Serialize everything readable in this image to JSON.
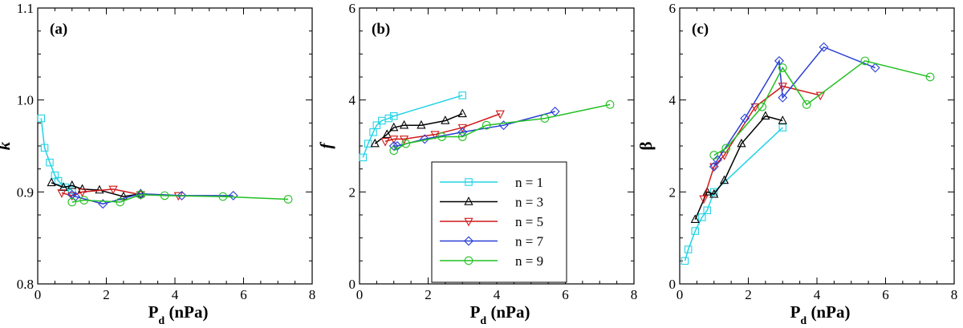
{
  "chart_data": [
    {
      "type": "line",
      "panel_label": "(a)",
      "xlabel_main": "P",
      "xlabel_sub": "d",
      "xlabel_unit": " (nPa)",
      "ylabel": "k",
      "ylabel_style": "bold-italic",
      "xlim": [
        0,
        8
      ],
      "ylim": [
        0.8,
        1.1
      ],
      "xticks": [
        0,
        2,
        4,
        6,
        8
      ],
      "yticks": [
        0.8,
        0.9,
        1.0,
        1.1
      ],
      "ytick_labels": [
        "0.8",
        "0.9",
        "1.0",
        "1.1"
      ],
      "series": [
        {
          "name": "n = 1",
          "marker": "square",
          "color": "#22d3e6",
          "x": [
            0.1,
            0.2,
            0.35,
            0.5,
            0.6,
            0.8,
            1.0
          ],
          "y": [
            0.98,
            0.948,
            0.932,
            0.918,
            0.912,
            0.905,
            0.902
          ]
        },
        {
          "name": "n = 3",
          "marker": "triangle-up",
          "color": "#000000",
          "x": [
            0.4,
            0.75,
            1.0,
            1.3,
            1.8,
            2.5,
            3.0
          ],
          "y": [
            0.91,
            0.905,
            0.907,
            0.903,
            0.902,
            0.895,
            0.898
          ]
        },
        {
          "name": "n = 5",
          "marker": "triangle-down",
          "color": "#d01818",
          "x": [
            0.7,
            1.0,
            1.3,
            2.2,
            3.0,
            4.1
          ],
          "y": [
            0.899,
            0.896,
            0.9,
            0.903,
            0.897,
            0.896
          ]
        },
        {
          "name": "n = 7",
          "marker": "diamond",
          "color": "#2a3fd6",
          "x": [
            1.0,
            1.1,
            1.9,
            3.0,
            4.2,
            5.7
          ],
          "y": [
            0.897,
            0.895,
            0.887,
            0.898,
            0.896,
            0.896
          ]
        },
        {
          "name": "n = 9",
          "marker": "circle",
          "color": "#22c022",
          "x": [
            1.0,
            1.35,
            2.4,
            3.0,
            3.7,
            5.4,
            7.3
          ],
          "y": [
            0.889,
            0.891,
            0.889,
            0.897,
            0.896,
            0.895,
            0.892
          ]
        }
      ]
    },
    {
      "type": "line",
      "panel_label": "(b)",
      "xlabel_main": "P",
      "xlabel_sub": "d",
      "xlabel_unit": " (nPa)",
      "ylabel": "f",
      "ylabel_style": "bold-italic",
      "xlim": [
        0,
        8
      ],
      "ylim": [
        0,
        6
      ],
      "xticks": [
        0,
        2,
        4,
        6,
        8
      ],
      "yticks": [
        0,
        2,
        4,
        6
      ],
      "ytick_labels": [
        "0",
        "2",
        "4",
        "6"
      ],
      "legend": [
        "n = 1",
        "n = 3",
        "n = 5",
        "n = 7",
        "n = 9"
      ],
      "series": [
        {
          "name": "n = 1",
          "marker": "square",
          "color": "#22d3e6",
          "x": [
            0.1,
            0.25,
            0.4,
            0.5,
            0.65,
            0.85,
            1.0,
            3.0
          ],
          "y": [
            2.75,
            3.05,
            3.3,
            3.45,
            3.55,
            3.6,
            3.65,
            4.1
          ]
        },
        {
          "name": "n = 3",
          "marker": "triangle-up",
          "color": "#000000",
          "x": [
            0.45,
            0.8,
            1.0,
            1.3,
            1.8,
            2.5,
            3.0
          ],
          "y": [
            3.05,
            3.25,
            3.4,
            3.45,
            3.45,
            3.55,
            3.7
          ]
        },
        {
          "name": "n = 5",
          "marker": "triangle-down",
          "color": "#d01818",
          "x": [
            0.75,
            1.0,
            1.3,
            2.2,
            3.0,
            4.1
          ],
          "y": [
            3.1,
            3.15,
            3.15,
            3.25,
            3.4,
            3.7
          ]
        },
        {
          "name": "n = 7",
          "marker": "diamond",
          "color": "#2a3fd6",
          "x": [
            1.0,
            1.1,
            1.9,
            3.0,
            4.2,
            5.7
          ],
          "y": [
            3.0,
            3.0,
            3.15,
            3.3,
            3.45,
            3.75
          ]
        },
        {
          "name": "n = 9",
          "marker": "circle",
          "color": "#22c022",
          "x": [
            1.0,
            1.35,
            2.4,
            3.0,
            3.7,
            5.4,
            7.3
          ],
          "y": [
            2.9,
            3.05,
            3.2,
            3.2,
            3.45,
            3.6,
            3.9
          ]
        }
      ]
    },
    {
      "type": "line",
      "panel_label": "(c)",
      "xlabel_main": "P",
      "xlabel_sub": "d",
      "xlabel_unit": " (nPa)",
      "ylabel": "β",
      "ylabel_style": "regular",
      "xlim": [
        0,
        8
      ],
      "ylim": [
        0,
        6
      ],
      "xticks": [
        0,
        2,
        4,
        6,
        8
      ],
      "yticks": [
        0,
        2,
        4,
        6
      ],
      "ytick_labels": [
        "0",
        "2",
        "4",
        "6"
      ],
      "series": [
        {
          "name": "n = 1",
          "marker": "square",
          "color": "#22d3e6",
          "x": [
            0.15,
            0.25,
            0.45,
            0.65,
            0.8,
            1.0,
            3.0
          ],
          "y": [
            0.5,
            0.75,
            1.15,
            1.45,
            1.6,
            2.0,
            3.4
          ]
        },
        {
          "name": "n = 3",
          "marker": "triangle-up",
          "color": "#000000",
          "x": [
            0.45,
            0.8,
            1.0,
            1.3,
            1.8,
            2.5,
            3.0
          ],
          "y": [
            1.4,
            2.0,
            1.95,
            2.25,
            3.05,
            3.65,
            3.55
          ]
        },
        {
          "name": "n = 5",
          "marker": "triangle-down",
          "color": "#d01818",
          "x": [
            0.7,
            1.0,
            1.3,
            2.2,
            3.0,
            4.1
          ],
          "y": [
            1.85,
            2.55,
            2.8,
            3.85,
            4.3,
            4.1
          ]
        },
        {
          "name": "n = 7",
          "marker": "diamond",
          "color": "#2a3fd6",
          "x": [
            1.0,
            1.1,
            1.9,
            2.9,
            3.0,
            4.2,
            5.7
          ],
          "y": [
            2.55,
            2.7,
            3.6,
            4.85,
            4.05,
            5.15,
            4.7
          ]
        },
        {
          "name": "n = 9",
          "marker": "circle",
          "color": "#22c022",
          "x": [
            1.0,
            1.35,
            2.4,
            3.0,
            3.7,
            5.4,
            7.3
          ],
          "y": [
            2.8,
            2.95,
            3.85,
            4.7,
            3.9,
            4.85,
            4.5
          ]
        }
      ]
    }
  ]
}
